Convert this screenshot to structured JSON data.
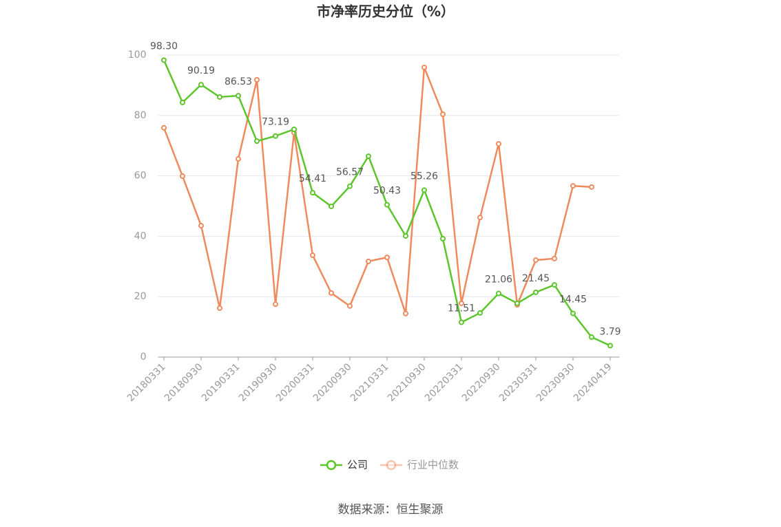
{
  "chart_data": {
    "type": "line",
    "title": "市净率历史分位（%）",
    "categories": [
      "20180331",
      null,
      "20180930",
      null,
      "20190331",
      null,
      "20190930",
      null,
      "20200331",
      null,
      "20200930",
      null,
      "20210331",
      null,
      "20210930",
      null,
      "20220331",
      null,
      "20220930",
      null,
      "20230331",
      null,
      "20230930",
      null,
      "20240419"
    ],
    "series": [
      {
        "name": "公司",
        "color": "#5bc52a",
        "values": [
          98.3,
          84.3,
          90.19,
          86.1,
          86.53,
          71.5,
          73.19,
          75.4,
          54.41,
          49.9,
          56.57,
          66.5,
          50.43,
          40.1,
          55.26,
          39.2,
          11.51,
          14.6,
          21.06,
          17.8,
          21.45,
          23.9,
          14.45,
          6.6,
          3.79
        ],
        "value_labels": [
          "98.30",
          null,
          "90.19",
          null,
          "86.53",
          null,
          "73.19",
          null,
          "54.41",
          null,
          "56.57",
          null,
          "50.43",
          null,
          "55.26",
          null,
          "11.51",
          null,
          "21.06",
          null,
          "21.45",
          null,
          "14.45",
          null,
          "3.79"
        ]
      },
      {
        "name": "行业中位数",
        "color": "#f08a5d",
        "values": [
          75.9,
          59.9,
          43.5,
          16.2,
          65.6,
          91.8,
          17.5,
          74.3,
          33.7,
          21.2,
          16.9,
          31.7,
          33.0,
          14.4,
          95.9,
          80.4,
          17.8,
          46.2,
          70.6,
          17.3,
          32.1,
          32.6,
          56.7,
          56.3,
          null
        ]
      }
    ],
    "ylim": [
      0,
      100
    ],
    "yticks": [
      0,
      20,
      40,
      60,
      80,
      100
    ],
    "grid": true,
    "source": "数据来源：恒生聚源"
  }
}
